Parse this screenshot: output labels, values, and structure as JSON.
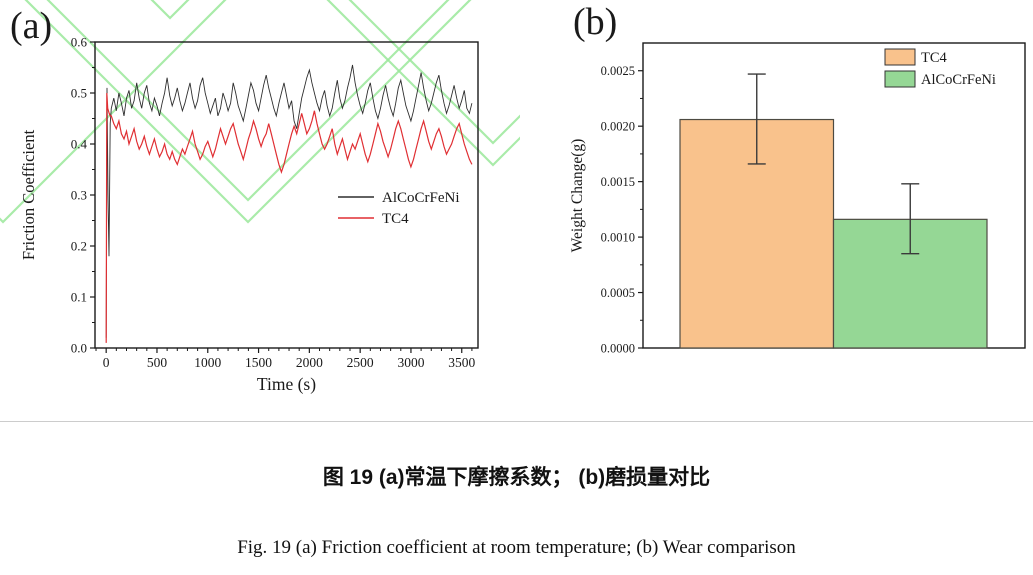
{
  "figure": {
    "panel_a_label": "(a)",
    "panel_b_label": "(b)",
    "caption_zh": "图  19   (a)常温下摩擦系数；  (b)磨损量对比",
    "caption_en": "Fig. 19 (a) Friction coefficient at room temperature; (b) Wear comparison"
  },
  "colors": {
    "frame": "#1a1a1a",
    "divider": "#cccccc",
    "watermark_green": "#9ae89a",
    "line_black": "#2e2e2e",
    "line_red": "#e02f33",
    "bar_orange": "#f9c28c",
    "bar_green": "#95d795",
    "bar_edge": "#4d4a42",
    "error_bar": "#3a3a3a"
  },
  "chart_data": [
    {
      "type": "line",
      "xlabel": "Time (s)",
      "ylabel": "Friction Coefficient",
      "xlim": [
        -110,
        3660
      ],
      "ylim": [
        0,
        0.6
      ],
      "xticks": [
        [
          0,
          "0"
        ],
        [
          500,
          "500"
        ],
        [
          1000,
          "1000"
        ],
        [
          1500,
          "1500"
        ],
        [
          2000,
          "2000"
        ],
        [
          2500,
          "2500"
        ],
        [
          3000,
          "3000"
        ],
        [
          3500,
          "3500"
        ]
      ],
      "yticks": [
        [
          0,
          "0.0"
        ],
        [
          0.1,
          "0.1"
        ],
        [
          0.2,
          "0.2"
        ],
        [
          0.3,
          "0.3"
        ],
        [
          0.4,
          "0.4"
        ],
        [
          0.5,
          "0.5"
        ],
        [
          0.6,
          "0.6"
        ]
      ],
      "x_minor_step": 100,
      "y_minor_step": 0.05,
      "grid": false,
      "legend_position": "inside-middle-right",
      "series": [
        {
          "name": "AlCoCrFeNi",
          "color": "#2e2e2e",
          "prefix": [
            [
              0,
              0.02
            ],
            [
              8,
              0.51
            ],
            [
              18,
              0.3
            ],
            [
              28,
              0.18
            ],
            [
              40,
              0.44
            ]
          ],
          "t0": 50,
          "dt": 25,
          "y": [
            0.47,
            0.49,
            0.465,
            0.5,
            0.48,
            0.455,
            0.49,
            0.505,
            0.47,
            0.485,
            0.52,
            0.49,
            0.47,
            0.5,
            0.515,
            0.48,
            0.465,
            0.49,
            0.475,
            0.455,
            0.48,
            0.5,
            0.53,
            0.495,
            0.475,
            0.49,
            0.51,
            0.485,
            0.465,
            0.48,
            0.5,
            0.52,
            0.49,
            0.47,
            0.485,
            0.515,
            0.53,
            0.5,
            0.48,
            0.46,
            0.475,
            0.49,
            0.455,
            0.47,
            0.5,
            0.485,
            0.465,
            0.48,
            0.52,
            0.5,
            0.475,
            0.46,
            0.445,
            0.47,
            0.495,
            0.52,
            0.505,
            0.48,
            0.465,
            0.49,
            0.515,
            0.535,
            0.51,
            0.49,
            0.47,
            0.455,
            0.48,
            0.5,
            0.52,
            0.495,
            0.47,
            0.485,
            0.445,
            0.43,
            0.46,
            0.49,
            0.51,
            0.53,
            0.545,
            0.52,
            0.5,
            0.48,
            0.465,
            0.49,
            0.505,
            0.475,
            0.455,
            0.47,
            0.5,
            0.525,
            0.49,
            0.47,
            0.485,
            0.51,
            0.53,
            0.555,
            0.52,
            0.495,
            0.475,
            0.46,
            0.48,
            0.505,
            0.52,
            0.49,
            0.465,
            0.45,
            0.47,
            0.495,
            0.515,
            0.49,
            0.47,
            0.455,
            0.48,
            0.51,
            0.525,
            0.5,
            0.475,
            0.46,
            0.445,
            0.465,
            0.49,
            0.515,
            0.54,
            0.51,
            0.485,
            0.465,
            0.48,
            0.5,
            0.52,
            0.535,
            0.505,
            0.48,
            0.46,
            0.475,
            0.495,
            0.515,
            0.49,
            0.47,
            0.485,
            0.505,
            0.47,
            0.46,
            0.48
          ]
        },
        {
          "name": "TC4",
          "color": "#e02f33",
          "prefix": [
            [
              0,
              0.01
            ],
            [
              6,
              0.5
            ],
            [
              15,
              0.47
            ],
            [
              30,
              0.46
            ],
            [
              40,
              0.455
            ]
          ],
          "t0": 50,
          "dt": 25,
          "y": [
            0.455,
            0.44,
            0.43,
            0.445,
            0.42,
            0.41,
            0.425,
            0.4,
            0.415,
            0.43,
            0.405,
            0.39,
            0.4,
            0.415,
            0.395,
            0.38,
            0.395,
            0.41,
            0.39,
            0.375,
            0.385,
            0.4,
            0.38,
            0.37,
            0.385,
            0.37,
            0.36,
            0.375,
            0.39,
            0.38,
            0.395,
            0.41,
            0.425,
            0.4,
            0.385,
            0.37,
            0.38,
            0.395,
            0.405,
            0.39,
            0.375,
            0.39,
            0.41,
            0.43,
            0.415,
            0.4,
            0.415,
            0.43,
            0.44,
            0.42,
            0.4,
            0.385,
            0.37,
            0.39,
            0.41,
            0.425,
            0.445,
            0.43,
            0.41,
            0.395,
            0.41,
            0.42,
            0.44,
            0.42,
            0.4,
            0.38,
            0.36,
            0.345,
            0.36,
            0.38,
            0.4,
            0.42,
            0.435,
            0.42,
            0.44,
            0.46,
            0.44,
            0.42,
            0.43,
            0.445,
            0.465,
            0.44,
            0.42,
            0.4,
            0.39,
            0.4,
            0.415,
            0.43,
            0.4,
            0.38,
            0.395,
            0.41,
            0.39,
            0.37,
            0.385,
            0.4,
            0.39,
            0.405,
            0.42,
            0.4,
            0.38,
            0.365,
            0.38,
            0.4,
            0.42,
            0.44,
            0.425,
            0.405,
            0.39,
            0.375,
            0.39,
            0.41,
            0.43,
            0.445,
            0.43,
            0.41,
            0.39,
            0.37,
            0.355,
            0.37,
            0.39,
            0.41,
            0.43,
            0.445,
            0.425,
            0.405,
            0.39,
            0.405,
            0.42,
            0.43,
            0.415,
            0.395,
            0.38,
            0.39,
            0.4,
            0.415,
            0.43,
            0.44,
            0.42,
            0.4,
            0.385,
            0.37,
            0.36
          ]
        }
      ]
    },
    {
      "type": "bar",
      "ylabel": "Weight Change(g)",
      "ylim": [
        0,
        0.00275
      ],
      "yticks": [
        [
          0,
          "0.0000"
        ],
        [
          0.0005,
          "0.0005"
        ],
        [
          0.001,
          "0.0010"
        ],
        [
          0.0015,
          "0.0015"
        ],
        [
          0.002,
          "0.0020"
        ],
        [
          0.0025,
          "0.0025"
        ]
      ],
      "y_minor_step": 0.00025,
      "grid": false,
      "legend_position": "inside-top-right",
      "categories": [
        "TC4",
        "AlCoCrFeNi"
      ],
      "values": [
        0.00206,
        0.00116
      ],
      "error_low": [
        0.00166,
        0.00085
      ],
      "error_high": [
        0.00247,
        0.00148
      ],
      "bar_colors": [
        "#f9c28c",
        "#95d795"
      ],
      "legend": [
        "TC4",
        "AlCoCrFeNi"
      ]
    }
  ]
}
